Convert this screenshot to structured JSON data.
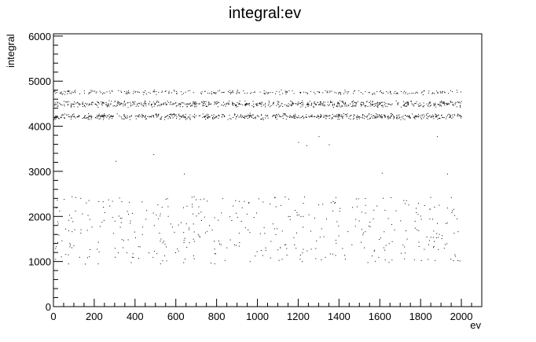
{
  "chart_data": {
    "type": "scatter",
    "title": "integral:ev",
    "xlabel": "ev",
    "ylabel": "integral",
    "xlim": [
      0,
      2100
    ],
    "ylim": [
      0,
      6050
    ],
    "x_ticks": [
      0,
      200,
      400,
      600,
      800,
      1000,
      1200,
      1400,
      1600,
      1800,
      2000
    ],
    "y_ticks": [
      0,
      1000,
      2000,
      3000,
      4000,
      5000,
      6000
    ],
    "x_tick_labels": [
      "0",
      "200",
      "400",
      "600",
      "800",
      "1000",
      "1200",
      "1400",
      "1600",
      "1800",
      "2000"
    ],
    "y_tick_labels": [
      "0",
      "1000",
      "2000",
      "3000",
      "4000",
      "5000",
      "6000"
    ],
    "x_range_of_points": [
      0,
      2000
    ],
    "marker_color": "#000000",
    "grid": false,
    "legend": "none",
    "clusters": [
      {
        "y_min": 4150,
        "y_max": 4300,
        "density": "dense"
      },
      {
        "y_min": 4420,
        "y_max": 4580,
        "density": "dense"
      },
      {
        "y_min": 4700,
        "y_max": 4820,
        "density": "medium"
      },
      {
        "y_min": 950,
        "y_max": 2450,
        "density": "sparse"
      }
    ],
    "outliers": [
      [
        305,
        3230
      ],
      [
        490,
        3380
      ],
      [
        640,
        2950
      ],
      [
        1200,
        3650
      ],
      [
        1240,
        3580
      ],
      [
        1300,
        3780
      ],
      [
        1350,
        3600
      ],
      [
        1880,
        3780
      ],
      [
        1930,
        2950
      ],
      [
        1610,
        2970
      ]
    ]
  }
}
